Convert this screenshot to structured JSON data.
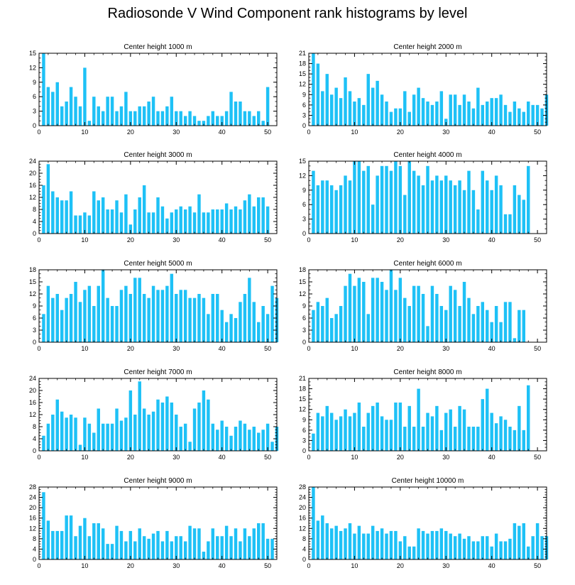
{
  "title": "Radiosonde V Wind Component rank histograms by level",
  "colors": {
    "bar": "#1ec1f6",
    "axis": "#000000",
    "background": "#ffffff"
  },
  "chart_data": [
    {
      "type": "bar",
      "title": "Center height 1000 m",
      "xlim": [
        0,
        52
      ],
      "ylim": [
        0,
        15
      ],
      "xticks": [
        0,
        10,
        20,
        30,
        40,
        50
      ],
      "yticks": [
        0,
        3,
        6,
        9,
        12,
        15
      ],
      "values": [
        15,
        8,
        7,
        9,
        4,
        5,
        8,
        6,
        4,
        12,
        1,
        6,
        4,
        3,
        6,
        6,
        3,
        4,
        7,
        3,
        3,
        4,
        4,
        5,
        6,
        3,
        3,
        4,
        6,
        3,
        3,
        2,
        3,
        2,
        1,
        1,
        2,
        3,
        2,
        2,
        3,
        7,
        5,
        5,
        3,
        3,
        2,
        3,
        1,
        8
      ]
    },
    {
      "type": "bar",
      "title": "Center height 2000 m",
      "xlim": [
        0,
        52
      ],
      "ylim": [
        0,
        21
      ],
      "xticks": [
        0,
        10,
        20,
        30,
        40,
        50
      ],
      "yticks": [
        0,
        3,
        6,
        9,
        12,
        15,
        18,
        21
      ],
      "values": [
        21,
        18,
        10,
        15,
        9,
        11,
        8,
        14,
        10,
        7,
        8,
        6,
        15,
        11,
        13,
        9,
        7,
        4,
        5,
        5,
        10,
        4,
        9,
        11,
        8,
        7,
        6,
        7,
        10,
        2,
        9,
        9,
        6,
        9,
        7,
        5,
        11,
        6,
        7,
        8,
        8,
        9,
        6,
        4,
        7,
        5,
        4,
        7,
        6,
        6,
        5,
        9
      ]
    },
    {
      "type": "bar",
      "title": "Center height 3000 m",
      "xlim": [
        0,
        52
      ],
      "ylim": [
        0,
        24
      ],
      "xticks": [
        0,
        10,
        20,
        30,
        40,
        50
      ],
      "yticks": [
        0,
        4,
        8,
        12,
        16,
        20,
        24
      ],
      "values": [
        16,
        23,
        14,
        12,
        11,
        11,
        14,
        6,
        6,
        7,
        6,
        14,
        11,
        12,
        8,
        8,
        11,
        7,
        13,
        3,
        8,
        12,
        16,
        7,
        7,
        12,
        9,
        5,
        7,
        8,
        9,
        8,
        9,
        7,
        13,
        7,
        7,
        8,
        8,
        8,
        10,
        8,
        9,
        8,
        11,
        13,
        9,
        12,
        12,
        9
      ]
    },
    {
      "type": "bar",
      "title": "Center height 4000 m",
      "xlim": [
        0,
        52
      ],
      "ylim": [
        0,
        15
      ],
      "xticks": [
        0,
        10,
        20,
        30,
        40,
        50
      ],
      "yticks": [
        0,
        3,
        6,
        9,
        12,
        15
      ],
      "values": [
        13,
        10,
        11,
        11,
        10,
        9,
        10,
        12,
        11,
        15,
        15,
        13,
        14,
        6,
        12,
        14,
        14,
        13,
        15,
        14,
        8,
        15,
        13,
        12,
        10,
        14,
        11,
        12,
        11,
        12,
        11,
        10,
        11,
        9,
        13,
        9,
        5,
        13,
        11,
        9,
        12,
        10,
        4,
        4,
        10,
        8,
        7,
        14
      ]
    },
    {
      "type": "bar",
      "title": "Center height 5000 m",
      "xlim": [
        0,
        52
      ],
      "ylim": [
        0,
        18
      ],
      "xticks": [
        0,
        10,
        20,
        30,
        40,
        50
      ],
      "yticks": [
        0,
        3,
        6,
        9,
        12,
        15,
        18
      ],
      "values": [
        7,
        14,
        11,
        12,
        8,
        11,
        12,
        15,
        10,
        13,
        14,
        9,
        14,
        18,
        11,
        9,
        9,
        13,
        14,
        12,
        16,
        16,
        12,
        11,
        14,
        13,
        13,
        14,
        17,
        12,
        13,
        13,
        11,
        11,
        12,
        11,
        7,
        12,
        12,
        8,
        5,
        7,
        6,
        10,
        12,
        16,
        10,
        5,
        9,
        7,
        14,
        11
      ]
    },
    {
      "type": "bar",
      "title": "Center height 6000 m",
      "xlim": [
        0,
        52
      ],
      "ylim": [
        0,
        18
      ],
      "xticks": [
        0,
        10,
        20,
        30,
        40,
        50
      ],
      "yticks": [
        0,
        3,
        6,
        9,
        12,
        15,
        18
      ],
      "values": [
        8,
        10,
        9,
        11,
        6,
        7,
        9,
        14,
        17,
        14,
        16,
        15,
        7,
        16,
        16,
        15,
        13,
        18,
        13,
        16,
        11,
        9,
        14,
        14,
        12,
        4,
        14,
        12,
        9,
        8,
        14,
        13,
        9,
        15,
        11,
        7,
        9,
        10,
        8,
        5,
        9,
        5,
        10,
        10,
        1,
        8,
        8
      ]
    },
    {
      "type": "bar",
      "title": "Center height 7000 m",
      "xlim": [
        0,
        52
      ],
      "ylim": [
        0,
        24
      ],
      "xticks": [
        0,
        10,
        20,
        30,
        40,
        50
      ],
      "yticks": [
        0,
        4,
        8,
        12,
        16,
        20,
        24
      ],
      "values": [
        5,
        9,
        12,
        17,
        13,
        11,
        12,
        11,
        2,
        11,
        9,
        6,
        14,
        9,
        9,
        9,
        14,
        10,
        11,
        20,
        12,
        23,
        14,
        12,
        13,
        17,
        16,
        18,
        16,
        12,
        8,
        9,
        3,
        14,
        16,
        20,
        17,
        9,
        7,
        10,
        8,
        5,
        8,
        10,
        9,
        7,
        8,
        6,
        7,
        9,
        3,
        8
      ]
    },
    {
      "type": "bar",
      "title": "Center height 8000 m",
      "xlim": [
        0,
        52
      ],
      "ylim": [
        0,
        21
      ],
      "xticks": [
        0,
        10,
        20,
        30,
        40,
        50
      ],
      "yticks": [
        0,
        3,
        6,
        9,
        12,
        15,
        18,
        21
      ],
      "values": [
        5,
        11,
        10,
        13,
        11,
        9,
        10,
        12,
        10,
        11,
        14,
        7,
        11,
        13,
        14,
        10,
        9,
        9,
        14,
        14,
        7,
        13,
        7,
        18,
        7,
        11,
        10,
        13,
        6,
        11,
        12,
        7,
        13,
        12,
        7,
        7,
        7,
        15,
        18,
        11,
        8,
        10,
        9,
        7,
        6,
        13,
        6,
        19
      ]
    },
    {
      "type": "bar",
      "title": "Center height 9000 m",
      "xlim": [
        0,
        52
      ],
      "ylim": [
        0,
        28
      ],
      "xticks": [
        0,
        10,
        20,
        30,
        40,
        50
      ],
      "yticks": [
        0,
        4,
        8,
        12,
        16,
        20,
        24,
        28
      ],
      "values": [
        26,
        15,
        11,
        11,
        11,
        17,
        17,
        9,
        13,
        16,
        9,
        14,
        14,
        12,
        6,
        6,
        13,
        11,
        7,
        11,
        7,
        12,
        9,
        8,
        10,
        11,
        7,
        11,
        7,
        9,
        9,
        7,
        13,
        12,
        12,
        3,
        7,
        12,
        9,
        9,
        13,
        9,
        12,
        7,
        12,
        9,
        12,
        14,
        14,
        8,
        8
      ]
    },
    {
      "type": "bar",
      "title": "Center height 10000 m",
      "xlim": [
        0,
        52
      ],
      "ylim": [
        0,
        28
      ],
      "xticks": [
        0,
        10,
        20,
        30,
        40,
        50
      ],
      "yticks": [
        0,
        4,
        8,
        12,
        16,
        20,
        24,
        28
      ],
      "values": [
        28,
        15,
        17,
        14,
        12,
        13,
        11,
        12,
        14,
        10,
        13,
        10,
        10,
        13,
        11,
        12,
        10,
        11,
        11,
        7,
        9,
        5,
        5,
        12,
        11,
        10,
        11,
        11,
        12,
        11,
        10,
        9,
        10,
        8,
        9,
        7,
        7,
        9,
        9,
        5,
        10,
        7,
        7,
        8,
        14,
        13,
        14,
        5,
        9,
        14,
        9,
        9
      ]
    }
  ]
}
